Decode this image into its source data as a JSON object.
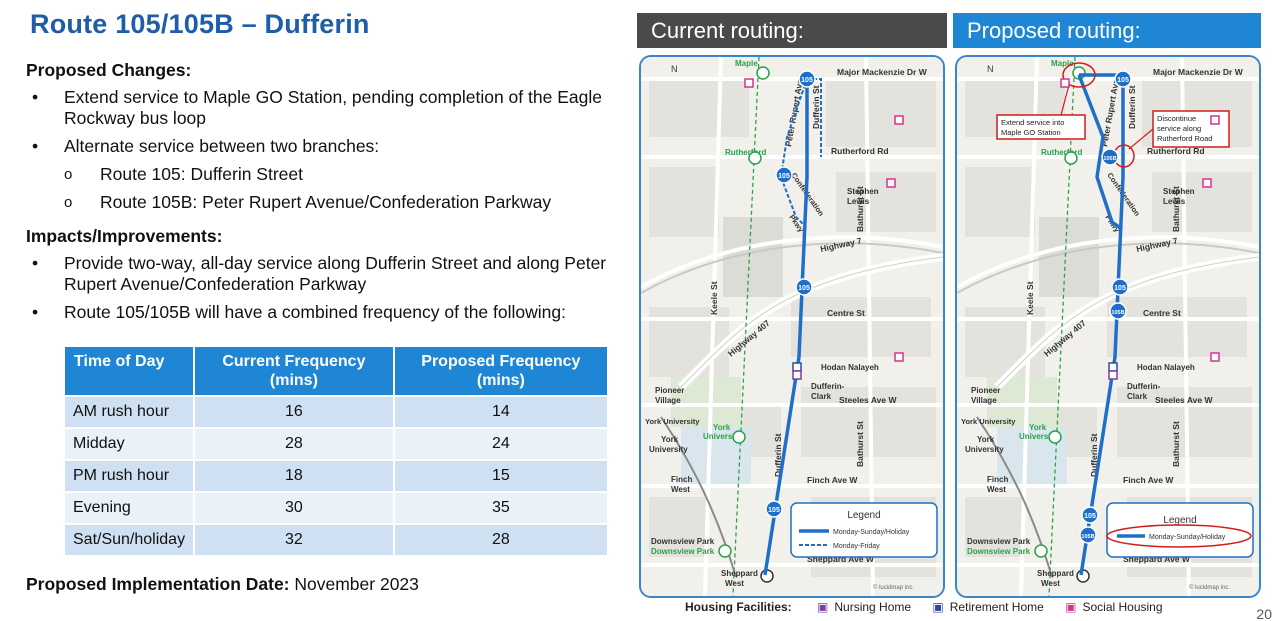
{
  "title": "Route 105/105B  – Dufferin",
  "proposed_changes": {
    "heading": "Proposed Changes:",
    "items": [
      "Extend service to Maple GO Station, pending completion of the Eagle Rockway bus loop",
      "Alternate service between two branches:"
    ],
    "subitems": [
      "Route 105: Dufferin Street",
      "Route 105B: Peter Rupert Avenue/Confederation Parkway"
    ]
  },
  "impacts": {
    "heading": "Impacts/Improvements:",
    "items": [
      "Provide two-way, all-day service along Dufferin Street and along Peter Rupert Avenue/Confederation Parkway",
      "Route 105/105B will have a combined frequency of the following:"
    ]
  },
  "table": {
    "headers": [
      "Time of Day",
      "Current Frequency (mins)",
      "Proposed Frequency (mins)"
    ],
    "rows": [
      [
        "AM rush hour",
        "16",
        "14"
      ],
      [
        "Midday",
        "28",
        "24"
      ],
      [
        "PM rush hour",
        "18",
        "15"
      ],
      [
        "Evening",
        "30",
        "35"
      ],
      [
        "Sat/Sun/holiday",
        "32",
        "28"
      ]
    ]
  },
  "implementation": {
    "label": "Proposed Implementation Date:",
    "value": " November 2023"
  },
  "current_header": "Current routing:",
  "proposed_header": "Proposed routing:",
  "map": {
    "north": "N",
    "streets": {
      "major_mackenzie": "Major Mackenzie Dr W",
      "rutherford": "Rutherford Rd",
      "highway7": "Highway 7",
      "centre": "Centre St",
      "steeles": "Steeles Ave W",
      "finch": "Finch Ave W",
      "sheppard": "Sheppard Ave W",
      "keele": "Keele St",
      "dufferin": "Dufferin St",
      "bathurst": "Bathurst St",
      "peter_rupert": "Peter Rupert Ave",
      "highway407": "Highway 407",
      "confederation": "Confederation",
      "pkwy": "Pkwy"
    },
    "places": {
      "maple": "Maple",
      "rutherford": "Rutherford",
      "stephen": "Stephen",
      "lewis": "Lewis",
      "hodan": "Hodan Nalayeh",
      "dufferin": "Dufferin-",
      "clark": "Clark",
      "pioneer": "Pioneer",
      "village": "Village",
      "york_univ": "York University",
      "york": "York",
      "university": "University",
      "york_g": "York",
      "university_g": "University",
      "finch": "Finch",
      "west": "West",
      "downsview_park": "Downsview Park",
      "downsview_park_g": "Downsview Park",
      "sheppard": "Sheppard",
      "sheppard_west": "West"
    },
    "route_105": "105",
    "route_105b": "105B",
    "legend": {
      "title": "Legend",
      "monsun": "Monday-Sunday/Holiday",
      "monfri": "Monday-Friday"
    },
    "annotations": {
      "extend_line1": "Extend service into",
      "extend_line2": "Maple GO Station",
      "discontinue_line1": "Discontinue",
      "discontinue_line2": "service along",
      "discontinue_line3": "Rutherford Road"
    },
    "credit": "© lucidmap inc."
  },
  "housing": {
    "label": "Housing Facilities:",
    "nursing": "Nursing Home",
    "retirement": "Retirement Home",
    "social": "Social Housing",
    "colors": {
      "nursing": "#7b3fa0",
      "retirement": "#2f4c9a",
      "social": "#d6338a"
    }
  },
  "page_number": "20"
}
